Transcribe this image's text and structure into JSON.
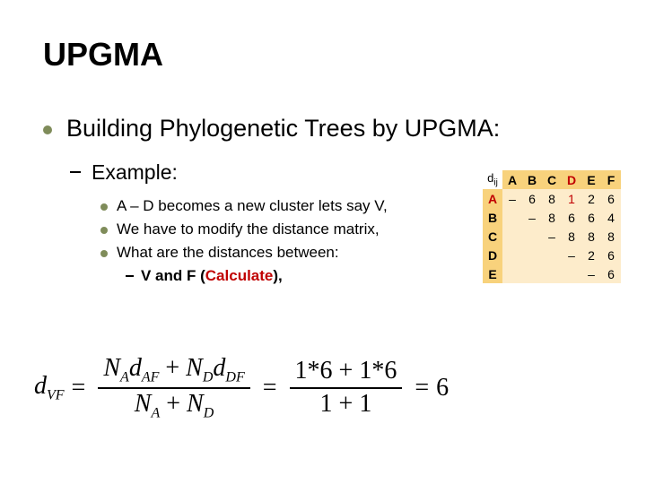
{
  "slide": {
    "title": "UPGMA",
    "l1": "Building Phylogenetic Trees by UPGMA:",
    "l2": "Example:",
    "l3a": "A – D becomes a new cluster lets say V,",
    "l3b": "We have to modify the distance matrix,",
    "l3c": "What are the distances between:",
    "l4": "V and F (",
    "l4_calc": "Calculate",
    "l4_tail": "),"
  },
  "colors": {
    "bullet": "#7f8c5a",
    "calc_red": "#c00000",
    "matrix_header_bg": "#f8d27c",
    "matrix_cell_bg": "#fdeccb",
    "matrix_red": "#c00000"
  },
  "matrix": {
    "corner": "d_ij",
    "cols": [
      "A",
      "B",
      "C",
      "D",
      "E",
      "F"
    ],
    "rows": [
      "A",
      "B",
      "C",
      "D",
      "E"
    ],
    "red_cols": [
      "D"
    ],
    "red_rows": [
      "A"
    ],
    "cells": [
      [
        "–",
        "6",
        "8",
        "1",
        "2",
        "6"
      ],
      [
        "",
        "–",
        "8",
        "6",
        "6",
        "4"
      ],
      [
        "",
        "",
        "–",
        "8",
        "8",
        "8"
      ],
      [
        "",
        "",
        "",
        "–",
        "2",
        "6"
      ],
      [
        "",
        "",
        "",
        "",
        "–",
        "6"
      ]
    ],
    "red_cells": [
      [
        0,
        3
      ]
    ]
  },
  "formula": {
    "lhs_var": "d",
    "lhs_sub": "VF",
    "num1_sym": "N_A d_AF + N_D d_DF",
    "den1_sym": "N_A + N_D",
    "num2": "1*6 + 1*6",
    "den2": "1 + 1",
    "result": "6"
  }
}
